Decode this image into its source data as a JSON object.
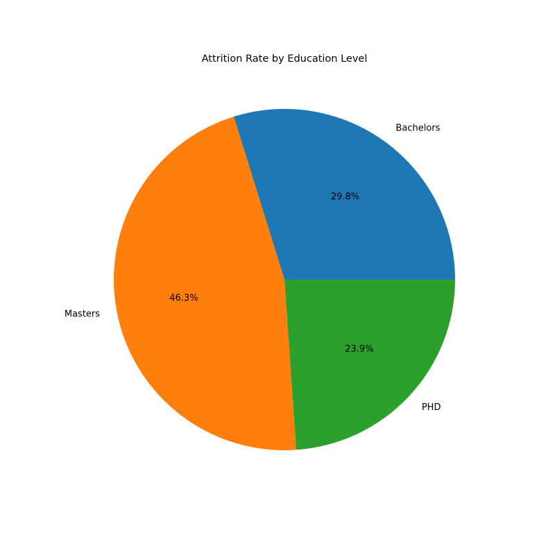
{
  "chart_data": {
    "type": "pie",
    "title": "Attrition Rate by Education Level",
    "slices": [
      {
        "label": "Bachelors",
        "percent": 29.8,
        "color": "#1f77b4"
      },
      {
        "label": "Masters",
        "percent": 46.3,
        "color": "#ff7f0e"
      },
      {
        "label": "PHD",
        "percent": 23.9,
        "color": "#2ca02c"
      }
    ],
    "autopct_format": "{:.1f}%",
    "start_angle_deg": 0,
    "direction": "counterclockwise",
    "legend": "none"
  }
}
